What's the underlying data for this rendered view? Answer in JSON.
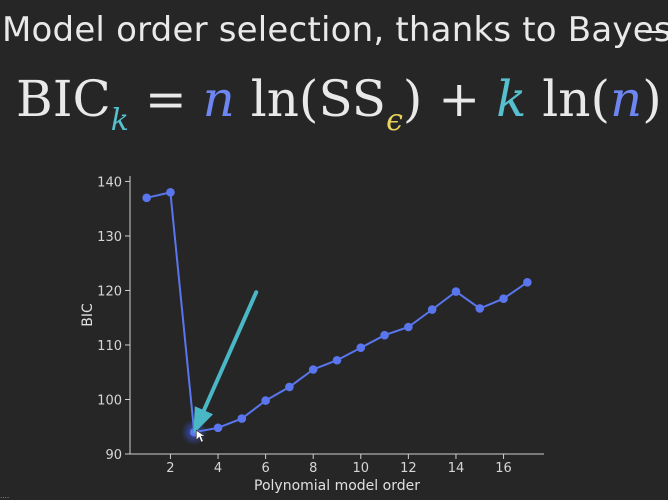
{
  "slide": {
    "title": "Model order selection, thanks to Bayes"
  },
  "formula": {
    "bic": "BIC",
    "k_sub": "k",
    "equals": " = ",
    "n1": "n",
    "ln1": " ln(",
    "ss": "SS",
    "eps": "ϵ",
    "close1": ")",
    "plus": " + ",
    "k": "k",
    "ln2": " ln(",
    "n2": "n",
    "close2": ")"
  },
  "colors": {
    "background": "#262626",
    "series_line": "#5a76ee",
    "arrow": "#4ab7c7",
    "n_term": "#6e86f2",
    "k_term": "#56c0cf",
    "epsilon": "#e8d45c"
  },
  "chart_data": {
    "type": "line",
    "xlabel": "Polynomial model order",
    "ylabel": "BIC",
    "xlim": [
      0.3,
      17.7
    ],
    "ylim": [
      90,
      141
    ],
    "x_ticks": [
      2,
      4,
      6,
      8,
      10,
      12,
      14,
      16
    ],
    "y_ticks": [
      90,
      100,
      110,
      120,
      130,
      140
    ],
    "grid": false,
    "series": [
      {
        "x": [
          1,
          2,
          3,
          4,
          5,
          6,
          7,
          8,
          9,
          10,
          11,
          12,
          13,
          14,
          15,
          16,
          17
        ],
        "values": [
          137,
          138,
          94,
          94.8,
          96.5,
          99.8,
          102.3,
          105.5,
          107.2,
          109.5,
          111.8,
          113.3,
          116.5,
          119.8,
          116.7,
          118.5,
          121.5
        ]
      }
    ],
    "annotation": {
      "type": "arrow",
      "points_to_x": 3,
      "points_to_y": 94
    }
  }
}
